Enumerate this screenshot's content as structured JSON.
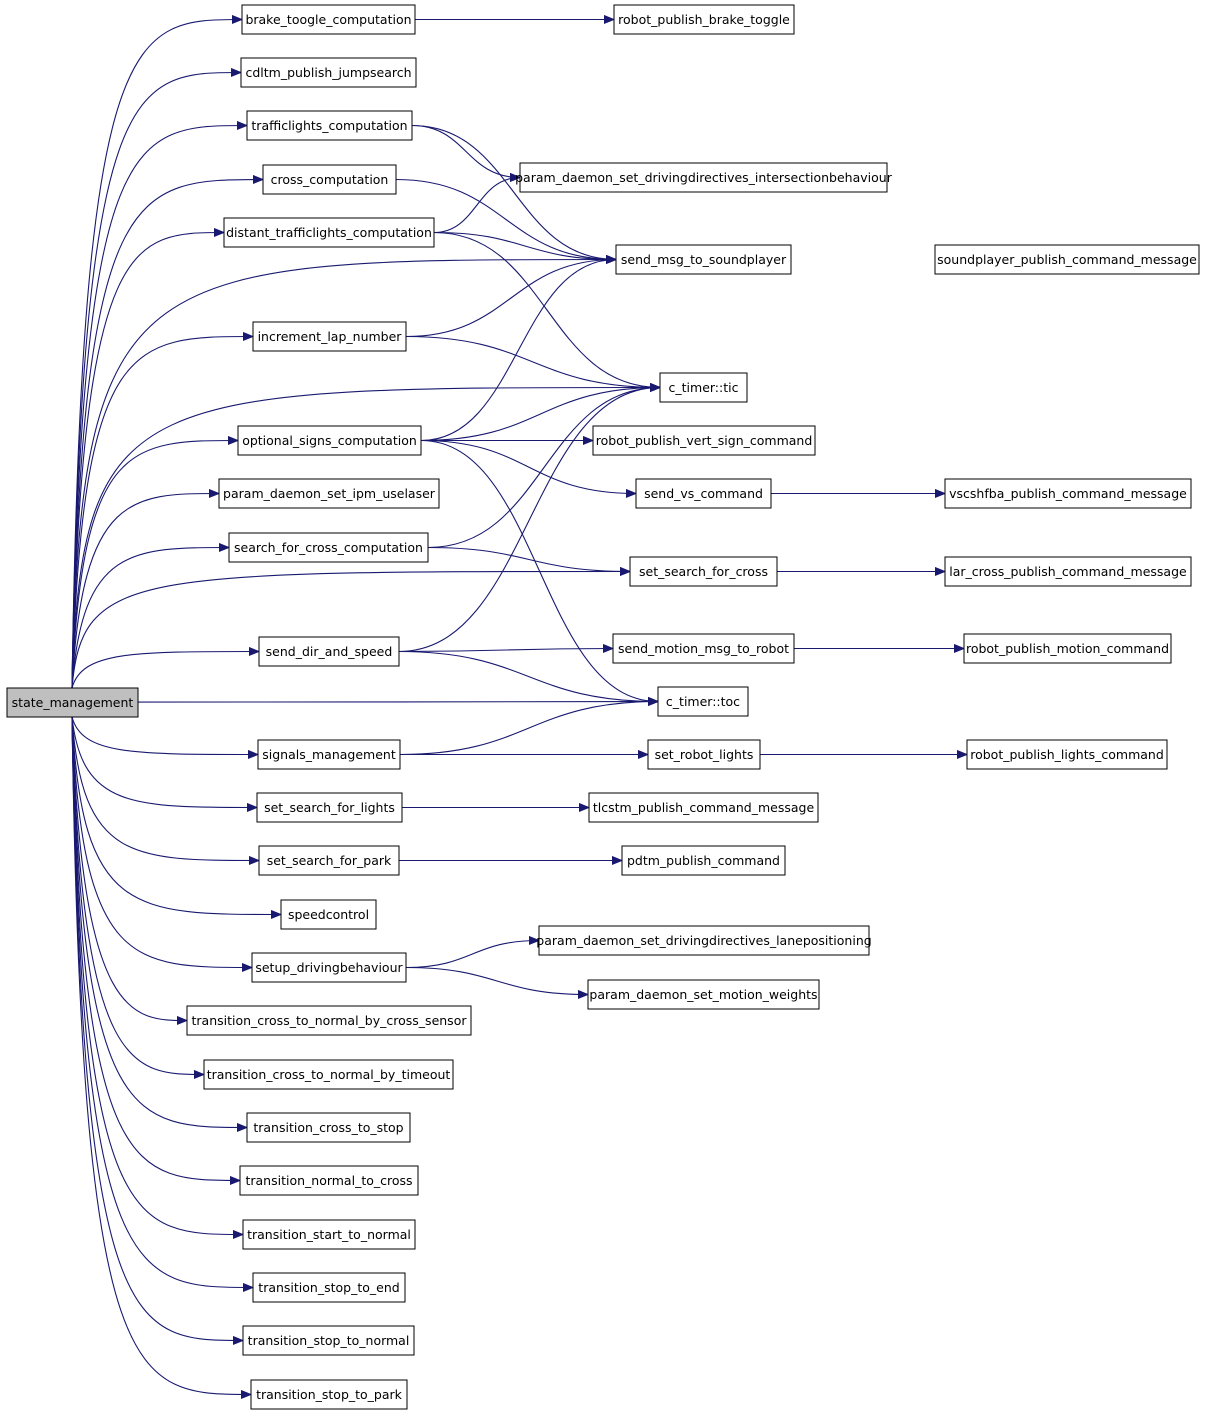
{
  "nodes": [
    {
      "label": "state_management"
    },
    {
      "label": "brake_toogle_computation"
    },
    {
      "label": "robot_publish_brake_toggle"
    },
    {
      "label": "cdltm_publish_jumpsearch"
    },
    {
      "label": "trafficlights_computation"
    },
    {
      "label": "param_daemon_set_drivingdirectives_intersectionbehaviour"
    },
    {
      "label": "cross_computation"
    },
    {
      "label": "distant_trafficlights_computation"
    },
    {
      "label": "send_msg_to_soundplayer"
    },
    {
      "label": "soundplayer_publish_command_message"
    },
    {
      "label": "increment_lap_number"
    },
    {
      "label": "c_timer::tic"
    },
    {
      "label": "optional_signs_computation"
    },
    {
      "label": "robot_publish_vert_sign_command"
    },
    {
      "label": "send_vs_command"
    },
    {
      "label": "vscshfba_publish_command_message"
    },
    {
      "label": "param_daemon_set_ipm_uselaser"
    },
    {
      "label": "search_for_cross_computation"
    },
    {
      "label": "set_search_for_cross"
    },
    {
      "label": "lar_cross_publish_command_message"
    },
    {
      "label": "send_dir_and_speed"
    },
    {
      "label": "send_motion_msg_to_robot"
    },
    {
      "label": "robot_publish_motion_command"
    },
    {
      "label": "c_timer::toc"
    },
    {
      "label": "signals_management"
    },
    {
      "label": "set_robot_lights"
    },
    {
      "label": "robot_publish_lights_command"
    },
    {
      "label": "set_search_for_lights"
    },
    {
      "label": "tlcstm_publish_command_message"
    },
    {
      "label": "set_search_for_park"
    },
    {
      "label": "pdtm_publish_command"
    },
    {
      "label": "speedcontrol"
    },
    {
      "label": "setup_drivingbehaviour"
    },
    {
      "label": "param_daemon_set_drivingdirectives_lanepositioning"
    },
    {
      "label": "param_daemon_set_motion_weights"
    },
    {
      "label": "transition_cross_to_normal_by_cross_sensor"
    },
    {
      "label": "transition_cross_to_normal_by_timeout"
    },
    {
      "label": "transition_cross_to_stop"
    },
    {
      "label": "transition_normal_to_cross"
    },
    {
      "label": "transition_start_to_normal"
    },
    {
      "label": "transition_stop_to_end"
    },
    {
      "label": "transition_stop_to_normal"
    },
    {
      "label": "transition_stop_to_park"
    }
  ]
}
